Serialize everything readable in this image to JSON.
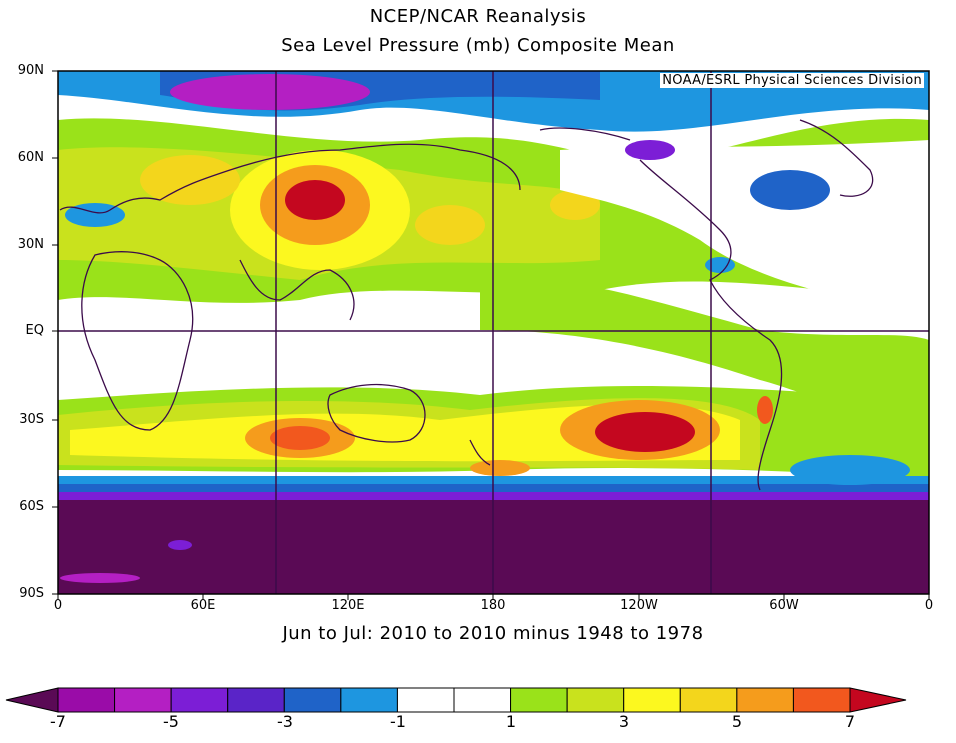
{
  "title": "NCEP/NCAR Reanalysis",
  "subtitle": "Sea Level Pressure (mb) Composite Mean",
  "credit": "NOAA/ESRL Physical Sciences Division",
  "period_label": "Jun to Jul: 2010 to 2010 minus 1948 to 1978",
  "lat_ticks": [
    "90N",
    "60N",
    "30N",
    "EQ",
    "30S",
    "60S",
    "90S"
  ],
  "lon_ticks": [
    "0",
    "60E",
    "120E",
    "180",
    "120W",
    "60W",
    "0"
  ],
  "colorbar": {
    "tick_labels": [
      "-7",
      "-5",
      "-3",
      "-1",
      "1",
      "3",
      "5",
      "7"
    ],
    "levels": [
      -7,
      -6,
      -5,
      -4,
      -3,
      -2,
      -1,
      0,
      1,
      2,
      3,
      4,
      5,
      6,
      7
    ],
    "colors": [
      "#9a0ca8",
      "#b41fc3",
      "#7c1ed6",
      "#5a24c8",
      "#1f63c8",
      "#1e96e0",
      "#ffffff",
      "#ffffff",
      "#9ae21a",
      "#c9e21d",
      "#fcf81f",
      "#f3d61c",
      "#f59c1c",
      "#f2581e"
    ],
    "low_color": "#5a0a55",
    "high_color": "#c4071f"
  },
  "map_colors": {
    "strong_negative": "#5a0a55",
    "negative": "#1e96e0",
    "positive": "#9ae21a",
    "strong_positive": "#c4071f",
    "coast": "#3b0b4a"
  }
}
